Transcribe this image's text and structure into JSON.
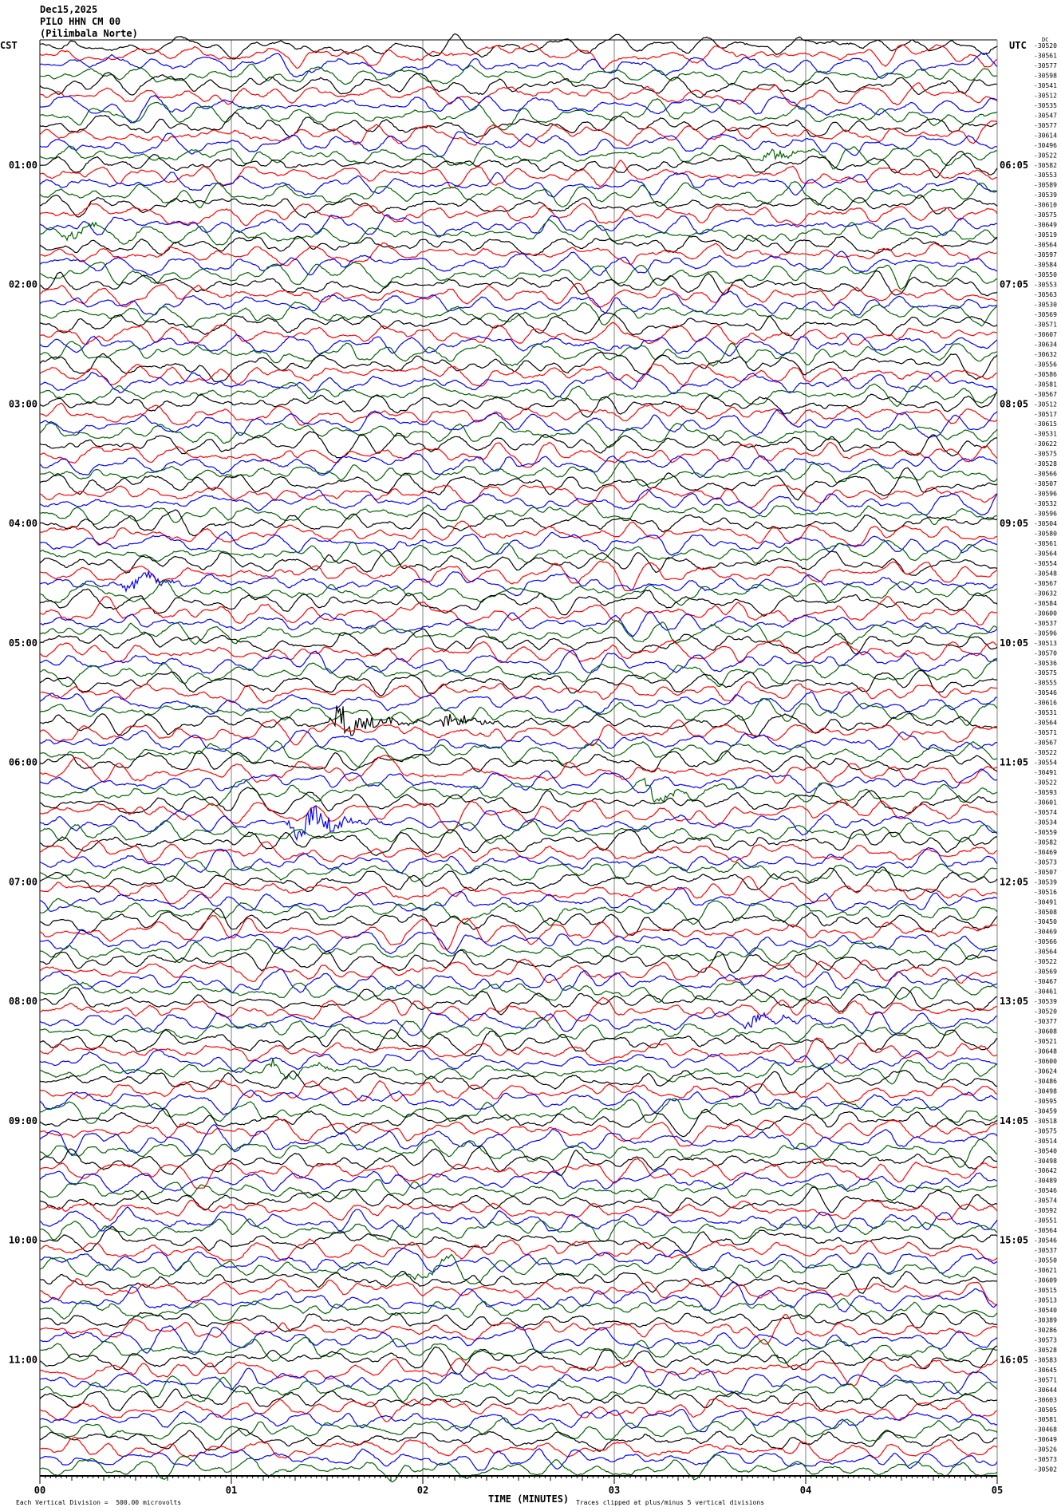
{
  "header": {
    "date": "Dec15,2025",
    "station": "PILO HHN CM 00",
    "site": "(Pilimbala Norte)",
    "left_zone": "CST",
    "right_zone": "UTC",
    "dc_label": "DC"
  },
  "footer": {
    "scale_note": "Each Vertical Division =  500.00 microvolts",
    "clip_note": "Traces clipped at plus/minus 5 vertical divisions",
    "corner_mark": "ᴍ"
  },
  "chart_data": {
    "type": "line",
    "xlabel": "TIME (MINUTES)",
    "xlim": [
      0,
      5
    ],
    "x_ticks": [
      "00",
      "01",
      "02",
      "03",
      "04",
      "05"
    ],
    "left_time_labels": [
      "01:00",
      "02:00",
      "03:00",
      "04:00",
      "05:00",
      "06:00",
      "07:00",
      "08:00",
      "09:00",
      "10:00",
      "11:00"
    ],
    "right_time_labels": [
      "06:05",
      "07:05",
      "08:05",
      "09:05",
      "10:05",
      "11:05",
      "12:05",
      "13:05",
      "14:05",
      "15:05",
      "16:05"
    ],
    "trace_colors": [
      "#000000",
      "#ff0000",
      "#0000ff",
      "#006400"
    ],
    "gridline_color": "#808080",
    "trace_offsets": [
      "-30520",
      "-30561",
      "-30577",
      "-30598",
      "-30541",
      "-30512",
      "-30535",
      "-30547",
      "-30577",
      "-30614",
      "-30496",
      "-30522",
      "-30582",
      "-30553",
      "-30589",
      "-30539",
      "-30610",
      "-30575",
      "-30649",
      "-30519",
      "-30564",
      "-30597",
      "-30584",
      "-30550",
      "-30553",
      "-30563",
      "-30530",
      "-30569",
      "-30571",
      "-30607",
      "-30634",
      "-30632",
      "-30556",
      "-30586",
      "-30581",
      "-30567",
      "-30512",
      "-30517",
      "-30615",
      "-30531",
      "-30622",
      "-30575",
      "-30528",
      "-30566",
      "-30507",
      "-30596",
      "-30532",
      "-30596",
      "-30504",
      "-30580",
      "-30561",
      "-30564",
      "-30554",
      "-30548",
      "-30567",
      "-30632",
      "-30584",
      "-30600",
      "-30537",
      "-30596",
      "-30513",
      "-30570",
      "-30536",
      "-30575",
      "-30555",
      "-30546",
      "-30616",
      "-30531",
      "-30564",
      "-30571",
      "-30567",
      "-30522",
      "-30554",
      "-30491",
      "-30522",
      "-30593",
      "-30601",
      "-30574",
      "-30534",
      "-30559",
      "-30582",
      "-30469",
      "-30573",
      "-30507",
      "-30539",
      "-30516",
      "-30491",
      "-30508",
      "-30450",
      "-30469",
      "-30566",
      "-30564",
      "-30522",
      "-30569",
      "-30467",
      "-30461",
      "-30539",
      "-30520",
      "-30377",
      "-30608",
      "-30521",
      "-30648",
      "-30600",
      "-30624",
      "-30486",
      "-30498",
      "-30595",
      "-30459",
      "-30518",
      "-30575",
      "-30514",
      "-30540",
      "-30498",
      "-30642",
      "-30489",
      "-30546",
      "-30574",
      "-30592",
      "-30551",
      "-30564",
      "-30546",
      "-30537",
      "-30550",
      "-30621",
      "-30609",
      "-30515",
      "-30513",
      "-30540",
      "-30389",
      "-30286",
      "-30573",
      "-30528",
      "-30583",
      "-30645",
      "-30571",
      "-30644",
      "-30603",
      "-30505",
      "-30581",
      "-30468",
      "-30649",
      "-30526",
      "-30573",
      "-30502"
    ],
    "events": [
      {
        "row": 11,
        "minute": 3.8,
        "strength": 0.6
      },
      {
        "row": 19,
        "minute": 0.15,
        "strength": 0.6
      },
      {
        "row": 54,
        "minute": 0.45,
        "strength": 0.7
      },
      {
        "row": 68,
        "minute": 1.55,
        "strength": 2.0
      },
      {
        "row": 68,
        "minute": 2.1,
        "strength": 0.9
      },
      {
        "row": 78,
        "minute": 1.33,
        "strength": 2.2
      },
      {
        "row": 75,
        "minute": 3.15,
        "strength": 0.6
      },
      {
        "row": 98,
        "minute": 3.7,
        "strength": 0.6
      },
      {
        "row": 103,
        "minute": 1.2,
        "strength": 0.7
      },
      {
        "row": 123,
        "minute": 1.95,
        "strength": 0.5
      }
    ]
  }
}
